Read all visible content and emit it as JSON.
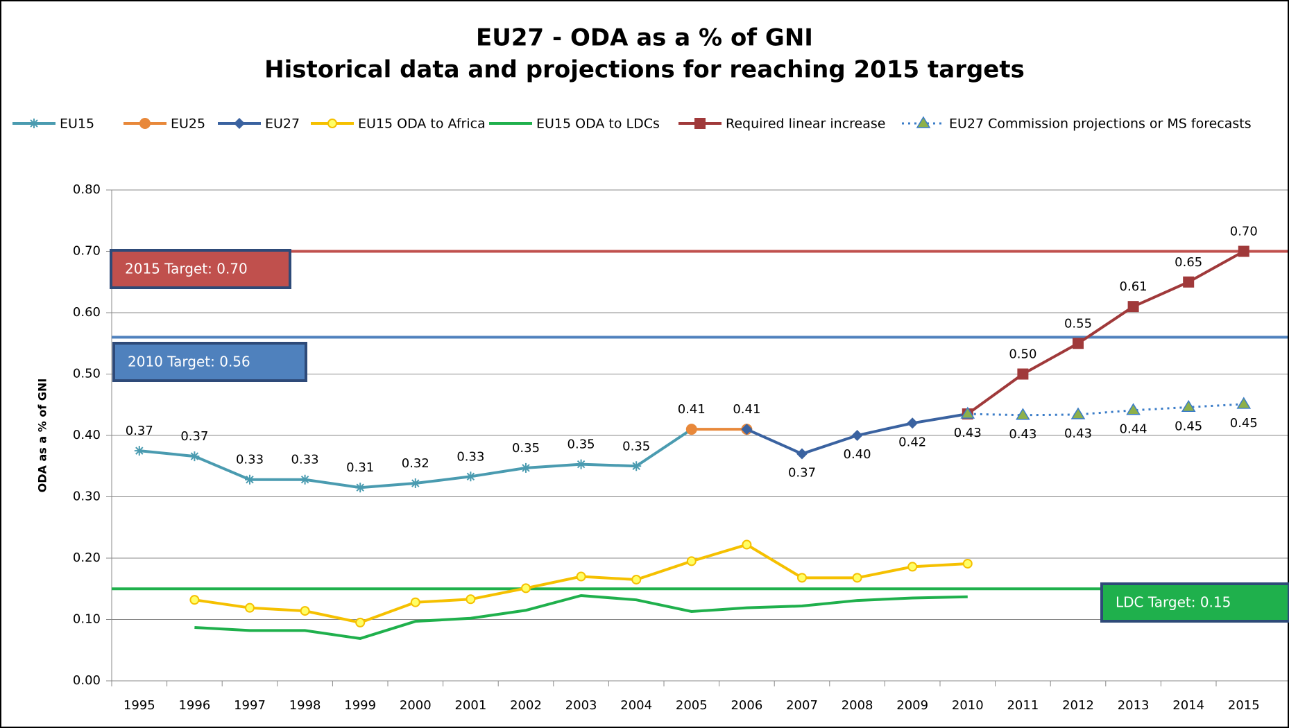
{
  "chart_data": {
    "type": "line",
    "title": [
      "EU27  - ODA as a % of GNI",
      "Historical data and projections for reaching 2015 targets"
    ],
    "y_label": "ODA as a % of GNI",
    "categories": [
      "1995",
      "1996",
      "1997",
      "1998",
      "1999",
      "2000",
      "2001",
      "2002",
      "2003",
      "2004",
      "2005",
      "2006",
      "2007",
      "2008",
      "2009",
      "2010",
      "2011",
      "2012",
      "2013",
      "2014",
      "2015"
    ],
    "ylim": [
      0,
      0.8
    ],
    "yticks": [
      {
        "value": 0,
        "label": "0.00"
      },
      {
        "value": 0.1,
        "label": "0.10"
      },
      {
        "value": 0.2,
        "label": "0.20"
      },
      {
        "value": 0.3,
        "label": "0.30"
      },
      {
        "value": 0.4,
        "label": "0.40"
      },
      {
        "value": 0.5,
        "label": "0.50"
      },
      {
        "value": 0.6,
        "label": "0.60"
      },
      {
        "value": 0.7,
        "label": "0.70"
      },
      {
        "value": 0.8,
        "label": "0.80"
      }
    ],
    "grid": true,
    "legend": "top",
    "series": [
      {
        "name": "EU15",
        "color": "#4a9bb0",
        "marker": "star",
        "values": [
          0.375,
          0.366,
          0.328,
          0.328,
          0.315,
          0.322,
          0.333,
          0.347,
          0.353,
          0.35,
          0.41,
          null,
          null,
          null,
          null,
          null,
          null,
          null,
          null,
          null,
          null
        ],
        "value_labels": [
          "0.37",
          "0.37",
          "0.33",
          "0.33",
          "0.31",
          "0.32",
          "0.33",
          "0.35",
          "0.35",
          "0.35",
          null,
          null,
          null,
          null,
          null,
          null,
          null,
          null,
          null,
          null,
          null
        ]
      },
      {
        "name": "EU25",
        "color": "#e8883a",
        "marker": "circle",
        "values": [
          null,
          null,
          null,
          null,
          null,
          null,
          null,
          null,
          null,
          null,
          0.41,
          0.41,
          null,
          null,
          null,
          null,
          null,
          null,
          null,
          null,
          null
        ],
        "value_labels": [
          null,
          null,
          null,
          null,
          null,
          null,
          null,
          null,
          null,
          null,
          "0.41",
          "0.41",
          null,
          null,
          null,
          null,
          null,
          null,
          null,
          null,
          null
        ]
      },
      {
        "name": "EU27",
        "color": "#3a62a0",
        "marker": "diamond",
        "values": [
          null,
          null,
          null,
          null,
          null,
          null,
          null,
          null,
          null,
          null,
          null,
          0.41,
          0.37,
          0.4,
          0.42,
          0.435,
          null,
          null,
          null,
          null,
          null
        ],
        "value_labels": [
          null,
          null,
          null,
          null,
          null,
          null,
          null,
          null,
          null,
          null,
          null,
          null,
          "0.37",
          "0.40",
          "0.42",
          null,
          null,
          null,
          null,
          null,
          null
        ]
      },
      {
        "name": "EU15 ODA to Africa",
        "color": "#f5c000",
        "marker": "open-circle",
        "values": [
          null,
          0.132,
          0.119,
          0.114,
          0.095,
          0.128,
          0.133,
          0.151,
          0.17,
          0.165,
          0.195,
          0.222,
          0.168,
          0.168,
          0.186,
          0.191,
          null,
          null,
          null,
          null,
          null
        ]
      },
      {
        "name": "EU15 ODA to LDCs",
        "color": "#1fb04c",
        "marker": "none",
        "values": [
          null,
          0.087,
          0.082,
          0.082,
          0.069,
          0.097,
          0.102,
          0.115,
          0.139,
          0.132,
          0.113,
          0.119,
          0.122,
          0.131,
          0.135,
          0.137,
          null,
          null,
          null,
          null,
          null
        ]
      },
      {
        "name": "Required linear increase",
        "color": "#a0393a",
        "marker": "square",
        "values": [
          null,
          null,
          null,
          null,
          null,
          null,
          null,
          null,
          null,
          null,
          null,
          null,
          null,
          null,
          null,
          0.435,
          0.5,
          0.55,
          0.61,
          0.65,
          0.7
        ],
        "value_labels": [
          null,
          null,
          null,
          null,
          null,
          null,
          null,
          null,
          null,
          null,
          null,
          null,
          null,
          null,
          null,
          null,
          "0.50",
          "0.55",
          "0.61",
          "0.65",
          "0.70"
        ]
      },
      {
        "name": "EU27  Commission  projections or MS forecasts",
        "color": "#3a7cc8",
        "marker": "triangle",
        "dotted": true,
        "values": [
          null,
          null,
          null,
          null,
          null,
          null,
          null,
          null,
          null,
          null,
          null,
          null,
          null,
          null,
          null,
          0.435,
          0.433,
          0.434,
          0.441,
          0.446,
          0.451
        ],
        "value_labels": [
          null,
          null,
          null,
          null,
          null,
          null,
          null,
          null,
          null,
          null,
          null,
          null,
          null,
          null,
          null,
          "0.43",
          "0.43",
          "0.43",
          "0.44",
          "0.45",
          "0.45"
        ]
      }
    ],
    "targets": [
      {
        "label": "2015 Target: 0.70",
        "value": 0.7,
        "color": "#c0504d"
      },
      {
        "label": "2010 Target: 0.56",
        "value": 0.56,
        "color": "#4f81bd"
      },
      {
        "label": "LDC Target: 0.15",
        "value": 0.15,
        "color": "#1fb04c"
      }
    ]
  }
}
